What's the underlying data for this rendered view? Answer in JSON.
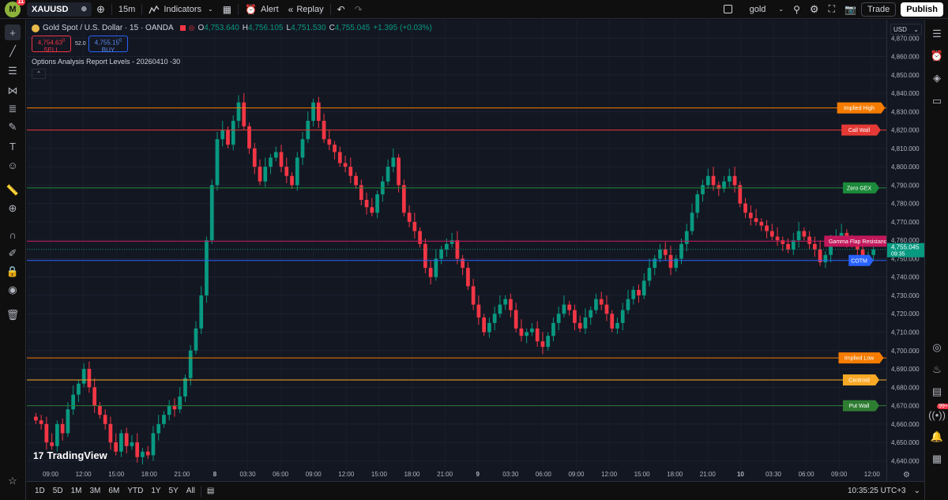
{
  "topbar": {
    "avatar_letter": "M",
    "avatar_badge": "11",
    "symbol": "XAUUSD",
    "interval": "15m",
    "indicators": "Indicators",
    "alert": "Alert",
    "replay": "Replay",
    "layout_name": "gold",
    "trade": "Trade",
    "publish": "Publish"
  },
  "legend": {
    "title": "Gold Spot / U.S. Dollar · 15 · OANDA",
    "o": "4,753.640",
    "h": "4,756.105",
    "l": "4,751.530",
    "c": "4,755.045",
    "change": "+1.395 (+0.03%)",
    "sell_price": "4,754.63",
    "sell_sup": "0",
    "sell_label": "SELL",
    "spread": "52.0",
    "buy_price": "4,755.15",
    "buy_sup": "0",
    "buy_label": "BUY",
    "indicator": "Options Analysis Report Levels - 20260410 -30"
  },
  "axis": {
    "currency": "USD",
    "current_price": "4,755.045",
    "countdown": "09:35"
  },
  "bottombar": {
    "ranges": [
      "1D",
      "5D",
      "1M",
      "3M",
      "6M",
      "YTD",
      "1Y",
      "5Y",
      "All"
    ],
    "clock": "10:35:25 UTC+3"
  },
  "watermark": "TradingView",
  "colors": {
    "up": "#089981",
    "down": "#f23645",
    "background": "#131722"
  },
  "chart_data": {
    "type": "candlestick",
    "ylim": [
      4635,
      4880
    ],
    "yticks": [
      4640,
      4650,
      4660,
      4670,
      4680,
      4690,
      4700,
      4710,
      4720,
      4730,
      4740,
      4750,
      4760,
      4770,
      4780,
      4790,
      4800,
      4810,
      4820,
      4830,
      4840,
      4850,
      4860,
      4870
    ],
    "x_ticks": [
      "09:00",
      "12:00",
      "15:00",
      "18:00",
      "21:00",
      "8",
      "03:30",
      "06:00",
      "09:00",
      "12:00",
      "15:00",
      "18:00",
      "21:00",
      "9",
      "03:30",
      "06:00",
      "09:00",
      "12:00",
      "15:00",
      "18:00",
      "21:00",
      "10",
      "03:30",
      "06:00",
      "09:00",
      "12:00"
    ],
    "levels": [
      {
        "name": "Implied High",
        "price": 4832,
        "color": "#f57c00"
      },
      {
        "name": "Call Wall",
        "price": 4820,
        "color": "#e53935"
      },
      {
        "name": "Zero GEX",
        "price": 4788.5,
        "color": "#1b8a3a"
      },
      {
        "name": "Gamma Flap Resistance",
        "price": 4759.5,
        "color": "#c2185b"
      },
      {
        "name": "COTM",
        "price": 4749,
        "color": "#2962ff"
      },
      {
        "name": "Implied Low",
        "price": 4696,
        "color": "#f57c00"
      },
      {
        "name": "Centroid",
        "price": 4684,
        "color": "#f9a825"
      },
      {
        "name": "Put Wall",
        "price": 4670,
        "color": "#2e7d32"
      }
    ],
    "close_path": [
      4662,
      4660,
      4650,
      4648,
      4660,
      4655,
      4668,
      4676,
      4682,
      4690,
      4680,
      4670,
      4665,
      4660,
      4650,
      4645,
      4655,
      4648,
      4650,
      4642,
      4645,
      4643,
      4655,
      4660,
      4665,
      4670,
      4668,
      4675,
      4685,
      4700,
      4712,
      4730,
      4760,
      4790,
      4815,
      4820,
      4812,
      4825,
      4835,
      4822,
      4810,
      4800,
      4792,
      4800,
      4805,
      4808,
      4800,
      4795,
      4790,
      4805,
      4815,
      4825,
      4835,
      4825,
      4815,
      4812,
      4808,
      4802,
      4800,
      4795,
      4790,
      4782,
      4778,
      4775,
      4785,
      4792,
      4800,
      4805,
      4790,
      4775,
      4770,
      4765,
      4758,
      4745,
      4740,
      4750,
      4755,
      4758,
      4760,
      4750,
      4745,
      4735,
      4725,
      4718,
      4710,
      4715,
      4720,
      4725,
      4728,
      4722,
      4712,
      4708,
      4710,
      4712,
      4705,
      4702,
      4708,
      4715,
      4720,
      4725,
      4722,
      4715,
      4712,
      4718,
      4722,
      4728,
      4725,
      4720,
      4712,
      4715,
      4722,
      4728,
      4733,
      4730,
      4738,
      4745,
      4750,
      4755,
      4752,
      4745,
      4750,
      4758,
      4765,
      4775,
      4785,
      4790,
      4795,
      4790,
      4788,
      4792,
      4795,
      4790,
      4780,
      4775,
      4772,
      4770,
      4768,
      4765,
      4762,
      4760,
      4758,
      4755,
      4760,
      4765,
      4762,
      4758,
      4755,
      4748,
      4752,
      4760,
      4762,
      4764,
      4760,
      4758,
      4755,
      4750,
      4752,
      4755
    ]
  }
}
